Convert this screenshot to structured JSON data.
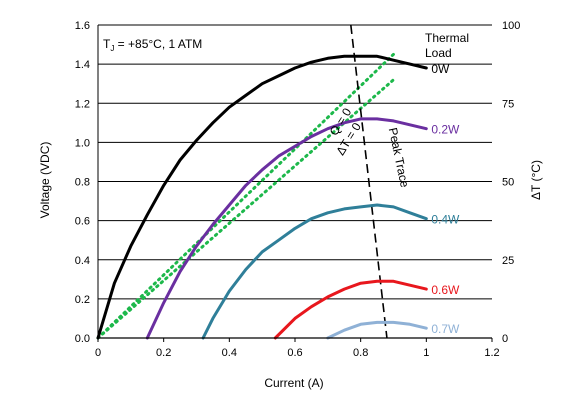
{
  "chart_data": {
    "type": "line",
    "title": "",
    "condition_text": "T",
    "condition_sub": "J",
    "condition_rest": " = +85°C, 1 ATM",
    "xlabel": "Current (A)",
    "ylabel": "Voltage (VDC)",
    "ylabel_right": "ΔT (°C)",
    "xlim": [
      0,
      1.2
    ],
    "ylim": [
      0,
      1.6
    ],
    "ylim_right": [
      0,
      100
    ],
    "x_ticks": [
      "0",
      "0.2",
      "0.4",
      "0.6",
      "0.8",
      "1",
      "1.2"
    ],
    "y_ticks": [
      "0.0",
      "0.2",
      "0.4",
      "0.6",
      "0.8",
      "1.0",
      "1.2",
      "1.4",
      "1.6"
    ],
    "y_right_ticks": [
      "0",
      "25",
      "50",
      "75",
      "100"
    ],
    "legend_title": [
      "Thermal",
      "Load"
    ],
    "grid": "horizontal",
    "series": [
      {
        "name": "0W",
        "color": "#000000",
        "label_color": "#000000",
        "x": [
          0,
          0.05,
          0.1,
          0.15,
          0.2,
          0.25,
          0.3,
          0.35,
          0.4,
          0.45,
          0.5,
          0.55,
          0.6,
          0.65,
          0.7,
          0.75,
          0.8,
          0.85,
          0.9,
          0.95,
          1.0
        ],
        "y": [
          0,
          0.28,
          0.47,
          0.63,
          0.78,
          0.91,
          1.01,
          1.1,
          1.18,
          1.24,
          1.3,
          1.34,
          1.38,
          1.41,
          1.43,
          1.44,
          1.44,
          1.44,
          1.42,
          1.4,
          1.38
        ]
      },
      {
        "name": "0.2W",
        "color": "#6a2fa0",
        "label_color": "#6a2fa0",
        "x": [
          0.15,
          0.2,
          0.25,
          0.3,
          0.35,
          0.4,
          0.45,
          0.5,
          0.55,
          0.6,
          0.65,
          0.7,
          0.75,
          0.8,
          0.85,
          0.9,
          0.95,
          1.0
        ],
        "y": [
          0,
          0.18,
          0.34,
          0.47,
          0.58,
          0.68,
          0.78,
          0.86,
          0.93,
          0.98,
          1.03,
          1.07,
          1.1,
          1.12,
          1.12,
          1.11,
          1.09,
          1.07
        ]
      },
      {
        "name": "0.4W",
        "color": "#2f7f99",
        "label_color": "#2f7f99",
        "x": [
          0.32,
          0.35,
          0.4,
          0.45,
          0.5,
          0.55,
          0.6,
          0.65,
          0.7,
          0.75,
          0.8,
          0.85,
          0.9,
          0.95,
          1.0
        ],
        "y": [
          0,
          0.1,
          0.24,
          0.35,
          0.44,
          0.5,
          0.56,
          0.61,
          0.64,
          0.66,
          0.67,
          0.68,
          0.67,
          0.64,
          0.61
        ]
      },
      {
        "name": "0.6W",
        "color": "#e8171d",
        "label_color": "#e8171d",
        "x": [
          0.54,
          0.6,
          0.65,
          0.7,
          0.75,
          0.8,
          0.85,
          0.9,
          0.95,
          1.0
        ],
        "y": [
          0,
          0.1,
          0.16,
          0.21,
          0.25,
          0.28,
          0.29,
          0.29,
          0.27,
          0.25
        ]
      },
      {
        "name": "0.7W",
        "color": "#8fb1d6",
        "label_color": "#8fb1d6",
        "x": [
          0.7,
          0.75,
          0.8,
          0.85,
          0.9,
          0.95,
          1.0
        ],
        "y": [
          0,
          0.04,
          0.07,
          0.08,
          0.08,
          0.07,
          0.05
        ]
      }
    ],
    "reference_lines": [
      {
        "label": "Q = 0",
        "color": "#1db84b",
        "style": "dotted",
        "x": [
          0,
          0.9
        ],
        "y": [
          0,
          1.45
        ]
      },
      {
        "label": "ΔT = 0",
        "color": "#1db84b",
        "style": "dotted",
        "x": [
          0,
          0.9
        ],
        "y": [
          0,
          1.32
        ]
      }
    ],
    "peak_trace": {
      "label": "Peak Trace",
      "color": "#000000",
      "style": "dashed",
      "x": [
        0.77,
        0.88
      ],
      "y": [
        1.6,
        0
      ]
    }
  }
}
